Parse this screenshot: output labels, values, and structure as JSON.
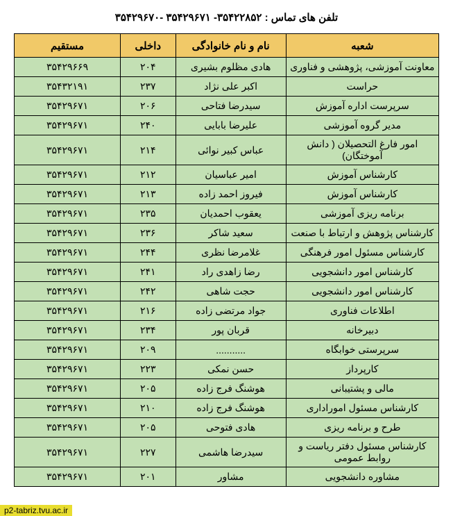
{
  "title": "تلفن های تماس : ۳۵۴۲۲۸۵۲- ۳۵۴۲۹۶۷۱ -۳۵۴۲۹۶۷۰",
  "table": {
    "header_bg": "#f1c968",
    "row_bg": "#c3e0b4",
    "border_color": "#000000",
    "columns": [
      {
        "key": "branch",
        "label": "شعبه"
      },
      {
        "key": "name",
        "label": "نام و نام خانوادگی"
      },
      {
        "key": "ext",
        "label": "داخلی"
      },
      {
        "key": "direct",
        "label": "مستقیم"
      }
    ],
    "rows": [
      {
        "branch": "معاونت آموزشی، پژوهشی و فناوری",
        "name": "هادی مظلوم بشیری",
        "ext": "۲۰۴",
        "direct": "۳۵۴۲۹۶۶۹"
      },
      {
        "branch": "حراست",
        "name": "اکبر علی نژاد",
        "ext": "۲۳۷",
        "direct": "۳۵۴۳۲۱۹۱"
      },
      {
        "branch": "سرپرست  اداره آموزش",
        "name": "سیدرضا فتاحی",
        "ext": "۲۰۶",
        "direct": "۳۵۴۲۹۶۷۱"
      },
      {
        "branch": "مدیر گروه آموزشی",
        "name": "علیرضا بابایی",
        "ext": "۲۴۰",
        "direct": "۳۵۴۲۹۶۷۱"
      },
      {
        "branch": "امور فارغ التحصیلان ( دانش آموختگان)",
        "name": "عباس کبیر نوائی",
        "ext": "۲۱۴",
        "direct": "۳۵۴۲۹۶۷۱"
      },
      {
        "branch": "کارشناس آموزش",
        "name": "امیر عباسیان",
        "ext": "۲۱۲",
        "direct": "۳۵۴۲۹۶۷۱"
      },
      {
        "branch": "کارشناس آموزش",
        "name": "فیروز احمد زاده",
        "ext": "۲۱۳",
        "direct": "۳۵۴۲۹۶۷۱"
      },
      {
        "branch": "برنامه ریزی  آموزشی",
        "name": "یعقوب احمدیان",
        "ext": "۲۳۵",
        "direct": "۳۵۴۲۹۶۷۱"
      },
      {
        "branch": "کارشناس پژوهش و ارتباط با صنعت",
        "name": "سعید شاکر",
        "ext": "۲۳۶",
        "direct": "۳۵۴۲۹۶۷۱"
      },
      {
        "branch": "کارشناس مسئول امور فرهنگی",
        "name": "غلامرضا نظری",
        "ext": "۲۴۴",
        "direct": "۳۵۴۲۹۶۷۱"
      },
      {
        "branch": "کارشناس امور دانشجویی",
        "name": "رضا زاهدی راد",
        "ext": "۲۴۱",
        "direct": "۳۵۴۲۹۶۷۱"
      },
      {
        "branch": "کارشناس امور دانشجویی",
        "name": "حجت شاهی",
        "ext": "۲۴۲",
        "direct": "۳۵۴۲۹۶۷۱"
      },
      {
        "branch": "اطلاعات فناوری",
        "name": "جواد مرتضی زاده",
        "ext": "۲۱۶",
        "direct": "۳۵۴۲۹۶۷۱"
      },
      {
        "branch": "دبیرخانه",
        "name": "قربان پور",
        "ext": "۲۳۴",
        "direct": "۳۵۴۲۹۶۷۱"
      },
      {
        "branch": "سرپرستی خوابگاه",
        "name": "...........",
        "ext": "۲۰۹",
        "direct": "۳۵۴۲۹۶۷۱"
      },
      {
        "branch": "کارپرداز",
        "name": "حسن نمکی",
        "ext": "۲۲۳",
        "direct": "۳۵۴۲۹۶۷۱"
      },
      {
        "branch": "مالی و پشتیبانی",
        "name": "هوشنگ فرج زاده",
        "ext": "۲۰۵",
        "direct": "۳۵۴۲۹۶۷۱"
      },
      {
        "branch": "کارشناس مسئول اموراداری",
        "name": "هوشنگ فرج زاده",
        "ext": "۲۱۰",
        "direct": "۳۵۴۲۹۶۷۱"
      },
      {
        "branch": "طرح و برنامه ریزی",
        "name": "هادی فتوحی",
        "ext": "۲۰۵",
        "direct": "۳۵۴۲۹۶۷۱"
      },
      {
        "branch": "کارشناس مسئول دفتر ریاست و روابط عمومی",
        "name": "سیدرضا هاشمی",
        "ext": "۲۲۷",
        "direct": "۳۵۴۲۹۶۷۱"
      },
      {
        "branch": "مشاوره دانشجویی",
        "name": "مشاور",
        "ext": "۲۰۱",
        "direct": "۳۵۴۲۹۶۷۱"
      }
    ]
  },
  "watermark": "p2-tabriz.tvu.ac.ir"
}
